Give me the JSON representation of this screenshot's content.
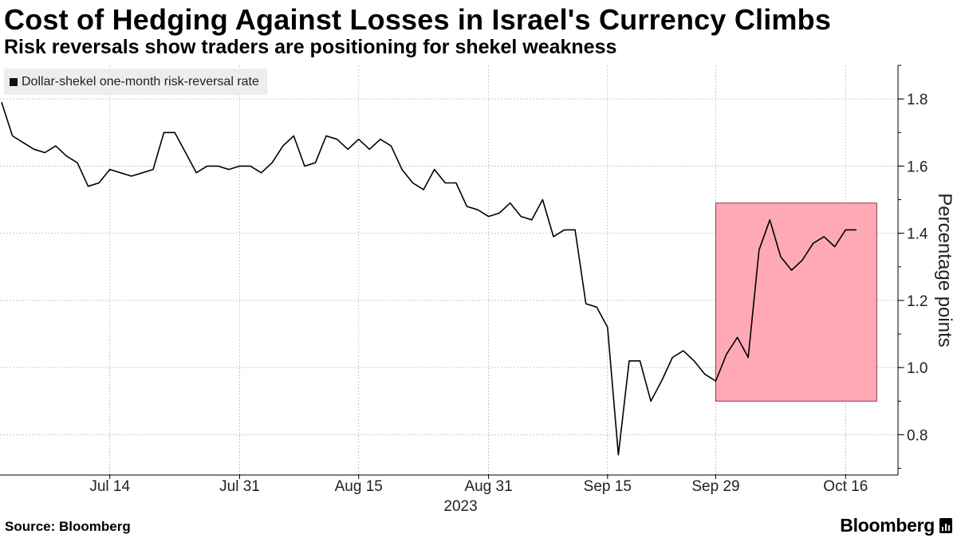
{
  "header": {
    "title": "Cost of Hedging Against Losses in Israel's Currency Climbs",
    "subtitle": "Risk reversals show traders are positioning for shekel weakness"
  },
  "footer": {
    "source": "Source: Bloomberg",
    "brand": "Bloomberg"
  },
  "colors": {
    "line": "#000000",
    "highlight": "#ff9aaa",
    "highlight_border": "#8a3a4a",
    "grid": "#c8c8c8"
  },
  "chart_data": {
    "type": "line",
    "title": "Cost of Hedging Against Losses in Israel's Currency Climbs",
    "subtitle": "Risk reversals show traders are positioning for shekel weakness",
    "ylabel": "Percentage points",
    "xlabel": "",
    "year_label": "2023",
    "ylim": [
      0.68,
      1.9
    ],
    "y_ticks": [
      0.8,
      1.0,
      1.2,
      1.4,
      1.6,
      1.8
    ],
    "y_tick_labels": [
      "0.8",
      "1.0",
      "1.2",
      "1.4",
      "1.6",
      "1.8"
    ],
    "x_ticks": [
      10,
      22,
      33,
      45,
      56,
      66,
      78
    ],
    "x_tick_labels": [
      "Jul 14",
      "Jul 31",
      "Aug 15",
      "Aug 31",
      "Sep 15",
      "Sep 29",
      "Oct 16"
    ],
    "x_range": [
      0,
      81
    ],
    "legend": "Dollar-shekel one-month risk-reversal rate",
    "legend_position": "top-left",
    "grid": true,
    "highlight": {
      "x_start": 66,
      "x_end": 80,
      "y_start": 0.9,
      "y_end": 1.49
    },
    "series": [
      {
        "name": "Dollar-shekel one-month risk-reversal rate",
        "values": [
          1.79,
          1.69,
          1.67,
          1.65,
          1.64,
          1.66,
          1.63,
          1.61,
          1.54,
          1.55,
          1.59,
          1.58,
          1.57,
          1.58,
          1.59,
          1.7,
          1.7,
          1.64,
          1.58,
          1.6,
          1.6,
          1.59,
          1.6,
          1.6,
          1.58,
          1.61,
          1.66,
          1.69,
          1.6,
          1.61,
          1.69,
          1.68,
          1.65,
          1.68,
          1.65,
          1.68,
          1.66,
          1.59,
          1.55,
          1.53,
          1.59,
          1.55,
          1.55,
          1.48,
          1.47,
          1.45,
          1.46,
          1.49,
          1.45,
          1.44,
          1.5,
          1.39,
          1.41,
          1.41,
          1.19,
          1.18,
          1.12,
          0.74,
          1.02,
          1.02,
          0.9,
          0.96,
          1.03,
          1.05,
          1.02,
          0.98,
          0.96,
          1.04,
          1.09,
          1.03,
          1.35,
          1.44,
          1.33,
          1.29,
          1.32,
          1.37,
          1.39,
          1.36,
          1.41,
          1.41
        ]
      }
    ]
  }
}
